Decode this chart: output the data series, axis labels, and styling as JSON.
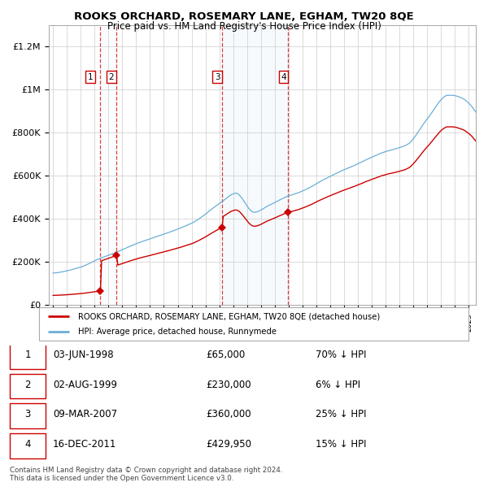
{
  "title": "ROOKS ORCHARD, ROSEMARY LANE, EGHAM, TW20 8QE",
  "subtitle": "Price paid vs. HM Land Registry's House Price Index (HPI)",
  "ylim": [
    0,
    1300000
  ],
  "xlim_start": 1994.7,
  "xlim_end": 2025.5,
  "yticks": [
    0,
    200000,
    400000,
    600000,
    800000,
    1000000,
    1200000
  ],
  "ytick_labels": [
    "£0",
    "£200K",
    "£400K",
    "£600K",
    "£800K",
    "£1M",
    "£1.2M"
  ],
  "hpi_color": "#6baed6",
  "price_color": "#cc0000",
  "background_color": "#ffffff",
  "grid_color": "#cccccc",
  "purchases": [
    {
      "num": 1,
      "year": 1998.42,
      "price": 65000
    },
    {
      "num": 2,
      "year": 1999.58,
      "price": 230000
    },
    {
      "num": 3,
      "year": 2007.18,
      "price": 360000
    },
    {
      "num": 4,
      "year": 2011.96,
      "price": 429950
    }
  ],
  "legend_label_price": "ROOKS ORCHARD, ROSEMARY LANE, EGHAM, TW20 8QE (detached house)",
  "legend_label_hpi": "HPI: Average price, detached house, Runnymede",
  "footer": "Contains HM Land Registry data © Crown copyright and database right 2024.\nThis data is licensed under the Open Government Licence v3.0.",
  "table_rows": [
    [
      "1",
      "03-JUN-1998",
      "£65,000",
      "70% ↓ HPI"
    ],
    [
      "2",
      "02-AUG-1999",
      "£230,000",
      "6% ↓ HPI"
    ],
    [
      "3",
      "09-MAR-2007",
      "£360,000",
      "25% ↓ HPI"
    ],
    [
      "4",
      "16-DEC-2011",
      "£429,950",
      "15% ↓ HPI"
    ]
  ],
  "hpi_span_color": "#d0e4f5",
  "label_positions": [
    {
      "num": 1,
      "year": 1997.7,
      "price_label": 1060000
    },
    {
      "num": 2,
      "year": 1999.2,
      "price_label": 1060000
    },
    {
      "num": 3,
      "year": 2006.85,
      "price_label": 1060000
    },
    {
      "num": 4,
      "year": 2011.63,
      "price_label": 1060000
    }
  ]
}
